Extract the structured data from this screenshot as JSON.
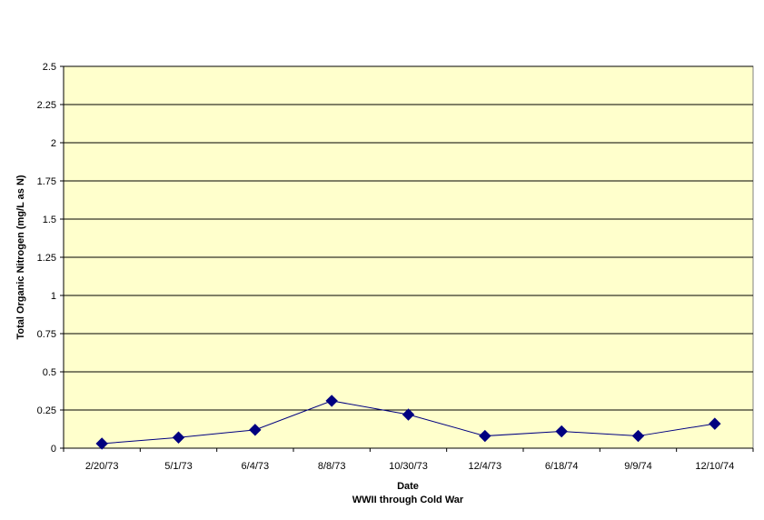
{
  "chart_data": {
    "type": "line",
    "title": "",
    "xlabel": "Date",
    "xlabel_sub": "WWII through Cold War",
    "ylabel": "Total Organic Nitrogen (mg/L as N)",
    "ylim": [
      0,
      2.5
    ],
    "yticks": [
      "0",
      "0.25",
      "0.5",
      "0.75",
      "1",
      "1.25",
      "1.5",
      "1.75",
      "2",
      "2.25",
      "2.5"
    ],
    "categories": [
      "2/20/73",
      "5/1/73",
      "6/4/73",
      "8/8/73",
      "10/30/73",
      "12/4/73",
      "6/18/74",
      "9/9/74",
      "12/10/74"
    ],
    "series": [
      {
        "values": [
          0.03,
          0.07,
          0.12,
          0.31,
          0.22,
          0.08,
          0.11,
          0.08,
          0.16
        ]
      }
    ],
    "grid": true,
    "legend": "none",
    "colors": {
      "plot_background": "#FFFFCC",
      "series_line": "#000080",
      "series_marker": "#000080",
      "gridline": "#000000"
    }
  }
}
